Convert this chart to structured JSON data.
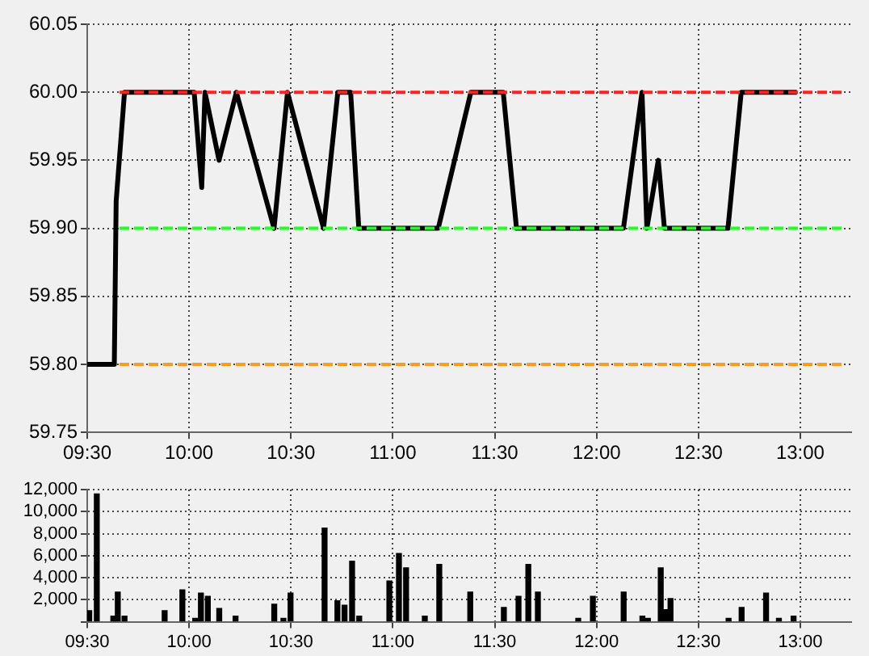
{
  "chart_data": [
    {
      "type": "line",
      "x": [
        9.5,
        9.633,
        9.642,
        9.683,
        10.025,
        10.062,
        10.078,
        10.147,
        10.232,
        10.417,
        10.483,
        10.66,
        10.73,
        10.793,
        10.833,
        11.223,
        11.383,
        11.542,
        11.607,
        12.132,
        12.223,
        12.247,
        12.303,
        12.333,
        12.645,
        12.71,
        12.983
      ],
      "series": [
        {
          "color": "#000000",
          "values": [
            59.8,
            59.8,
            59.92,
            60.0,
            60.0,
            59.93,
            60.0,
            59.95,
            60.0,
            59.9,
            60.0,
            59.9,
            60.0,
            60.0,
            59.9,
            59.9,
            60.0,
            60.0,
            59.9,
            59.9,
            60.0,
            59.9,
            59.95,
            59.9,
            59.9,
            60.0,
            60.0
          ]
        }
      ],
      "xlim": [
        9.5,
        13.25
      ],
      "xticks": [
        {
          "value": 9.5,
          "label": "09:30"
        },
        {
          "value": 10,
          "label": "10:00"
        },
        {
          "value": 10.5,
          "label": "10:30"
        },
        {
          "value": 11,
          "label": "11:00"
        },
        {
          "value": 11.5,
          "label": "11:30"
        },
        {
          "value": 12,
          "label": "12:00"
        },
        {
          "value": 12.5,
          "label": "12:30"
        },
        {
          "value": 13,
          "label": "13:00"
        }
      ],
      "ylim": [
        59.75,
        60.05
      ],
      "yticks": [
        {
          "value": 59.75,
          "label": "59.75"
        },
        {
          "value": 59.8,
          "label": "59.80"
        },
        {
          "value": 59.85,
          "label": "59.85"
        },
        {
          "value": 59.9,
          "label": "59.90"
        },
        {
          "value": 59.95,
          "label": "59.95"
        },
        {
          "value": 60,
          "label": "60.00"
        },
        {
          "value": 60.05,
          "label": "60.05"
        }
      ],
      "ref_lines": [
        {
          "axis": "y",
          "value": 60.0,
          "color": "#ff2020",
          "line_style": "dashed"
        },
        {
          "axis": "y",
          "value": 59.9,
          "color": "#20ff20",
          "line_style": "dashed"
        },
        {
          "axis": "y",
          "value": 59.8,
          "color": "#ff9a20",
          "line_style": "dashed"
        }
      ],
      "grid": true,
      "legend": false,
      "marker": "none",
      "line_style": "solid"
    },
    {
      "type": "bar",
      "x": [
        9.51,
        9.547,
        9.628,
        9.65,
        9.683,
        9.88,
        9.967,
        10.03,
        10.058,
        10.092,
        10.148,
        10.228,
        10.418,
        10.463,
        10.498,
        10.665,
        10.728,
        10.763,
        10.8,
        10.835,
        10.983,
        11.03,
        11.065,
        11.157,
        11.228,
        11.38,
        11.545,
        11.617,
        11.665,
        11.712,
        11.91,
        11.982,
        12.133,
        12.225,
        12.252,
        12.315,
        12.337,
        12.363,
        12.648,
        12.712,
        12.832,
        12.895,
        12.967
      ],
      "series": [
        {
          "color": "#000000",
          "values": [
            1000,
            11600,
            500,
            2700,
            500,
            1000,
            2900,
            300,
            2600,
            2300,
            1200,
            500,
            1600,
            300,
            2600,
            8500,
            1900,
            1500,
            5500,
            500,
            3700,
            6200,
            4900,
            500,
            5200,
            2700,
            1300,
            2300,
            5200,
            2700,
            300,
            2300,
            2700,
            500,
            300,
            4900,
            1100,
            2100,
            300,
            1300,
            2600,
            300,
            500
          ]
        }
      ],
      "xlim": [
        9.5,
        13.25
      ],
      "xticks": [
        {
          "value": 9.5,
          "label": "09:30"
        },
        {
          "value": 10,
          "label": "10:00"
        },
        {
          "value": 10.5,
          "label": "10:30"
        },
        {
          "value": 11,
          "label": "11:00"
        },
        {
          "value": 11.5,
          "label": "11:30"
        },
        {
          "value": 12,
          "label": "12:00"
        },
        {
          "value": 12.5,
          "label": "12:30"
        },
        {
          "value": 13,
          "label": "13:00"
        }
      ],
      "ylim": [
        0,
        12000
      ],
      "yticks": [
        {
          "value": 0,
          "label": null
        },
        {
          "value": 2000,
          "label": "2,000"
        },
        {
          "value": 4000,
          "label": "4,000"
        },
        {
          "value": 6000,
          "label": "6,000"
        },
        {
          "value": 8000,
          "label": "8,000"
        },
        {
          "value": 10000,
          "label": "10,000"
        },
        {
          "value": 12000,
          "label": "12,000"
        }
      ],
      "grid": true,
      "legend": false
    }
  ]
}
